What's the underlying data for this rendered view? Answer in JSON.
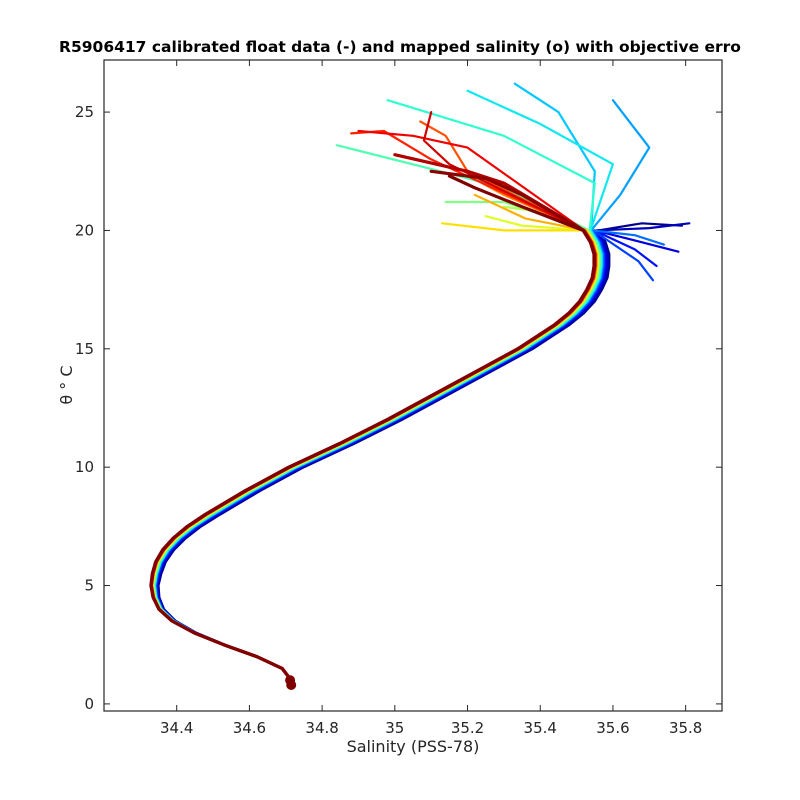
{
  "chart_data": {
    "type": "line",
    "title": "R5906417 calibrated float data (-) and mapped salinity (o) with objective erro",
    "xlabel": "Salinity (PSS-78)",
    "ylabel": "θ ° C",
    "xlim": [
      34.2,
      35.9
    ],
    "ylim": [
      -0.3,
      27.2
    ],
    "xticks": [
      34.4,
      34.6,
      34.8,
      35,
      35.2,
      35.4,
      35.6,
      35.8
    ],
    "xtick_labels": [
      "34.4",
      "34.6",
      "34.8",
      "35",
      "35.2",
      "35.4",
      "35.6",
      "35.8"
    ],
    "yticks": [
      0,
      5,
      10,
      15,
      20,
      25
    ],
    "ytick_labels": [
      "0",
      "5",
      "10",
      "15",
      "20",
      "25"
    ],
    "grid": false,
    "legend": "none",
    "colormap": "jet",
    "base_profile": {
      "theta": [
        1.0,
        1.5,
        2.0,
        2.5,
        3.0,
        3.5,
        4.0,
        4.5,
        5.0,
        5.5,
        6.0,
        6.5,
        7.0,
        7.5,
        8.0,
        9.0,
        10.0,
        11.0,
        12.0,
        13.0,
        14.0,
        15.0,
        16.0,
        16.5,
        17.0,
        17.5,
        18.0,
        18.5,
        19.0,
        19.5,
        20.0
      ],
      "salinity": [
        34.715,
        34.69,
        34.62,
        34.53,
        34.45,
        34.39,
        34.355,
        34.34,
        34.335,
        34.34,
        34.35,
        34.37,
        34.4,
        34.44,
        34.49,
        34.6,
        34.72,
        34.86,
        34.99,
        35.11,
        35.23,
        35.35,
        35.45,
        35.49,
        35.52,
        35.54,
        35.555,
        35.56,
        35.56,
        35.55,
        35.53
      ]
    },
    "series": [
      {
        "color": "#00008f",
        "s_offset": 0.03,
        "top": [
          [
            20.3,
            35.68
          ],
          [
            20.2,
            35.79
          ]
        ]
      },
      {
        "color": "#0000ba",
        "s_offset": 0.025,
        "top": [
          [
            20.1,
            35.7
          ],
          [
            20.3,
            35.81
          ]
        ]
      },
      {
        "color": "#0000e0",
        "s_offset": 0.02,
        "top": [
          [
            19.5,
            35.68
          ],
          [
            19.1,
            35.78
          ]
        ]
      },
      {
        "color": "#0010ff",
        "s_offset": 0.018,
        "top": [
          [
            19.2,
            35.66
          ],
          [
            18.5,
            35.72
          ]
        ]
      },
      {
        "color": "#0040ff",
        "s_offset": 0.015,
        "top": [
          [
            18.7,
            35.67
          ],
          [
            17.9,
            35.71
          ]
        ]
      },
      {
        "color": "#0070ff",
        "s_offset": 0.012,
        "top": [
          [
            19.8,
            35.66
          ],
          [
            19.4,
            35.74
          ]
        ]
      },
      {
        "color": "#00a0ff",
        "s_offset": 0.01,
        "top": [
          [
            21.5,
            35.62
          ],
          [
            23.5,
            35.7
          ],
          [
            25.5,
            35.6
          ]
        ]
      },
      {
        "color": "#00c8ff",
        "s_offset": 0.01,
        "top": [
          [
            22.5,
            35.55
          ],
          [
            25.0,
            35.45
          ],
          [
            26.2,
            35.33
          ]
        ]
      },
      {
        "color": "#10e8f0",
        "s_offset": 0.008,
        "top": [
          [
            22.8,
            35.6
          ],
          [
            24.5,
            35.4
          ],
          [
            25.9,
            35.2
          ]
        ]
      },
      {
        "color": "#30ffd0",
        "s_offset": 0.006,
        "top": [
          [
            22.0,
            35.55
          ],
          [
            24.0,
            35.3
          ],
          [
            25.5,
            34.98
          ]
        ]
      },
      {
        "color": "#50ffb0",
        "s_offset": 0.004,
        "top": [
          [
            21.8,
            35.3
          ],
          [
            22.6,
            35.1
          ],
          [
            23.6,
            34.84
          ]
        ]
      },
      {
        "color": "#80ff80",
        "s_offset": 0.002,
        "top": [
          [
            21.2,
            35.3
          ],
          [
            21.2,
            35.14
          ]
        ]
      },
      {
        "color": "#b0ff50",
        "s_offset": 0.0,
        "top": [
          [
            20.8,
            35.4
          ],
          [
            21.0,
            35.3
          ]
        ]
      },
      {
        "color": "#e0ff20",
        "s_offset": -0.002,
        "top": [
          [
            20.2,
            35.35
          ],
          [
            20.6,
            35.25
          ]
        ]
      },
      {
        "color": "#ffe000",
        "s_offset": -0.004,
        "top": [
          [
            20.0,
            35.3
          ],
          [
            20.3,
            35.13
          ]
        ]
      },
      {
        "color": "#ffb000",
        "s_offset": -0.005,
        "top": [
          [
            20.5,
            35.36
          ],
          [
            21.5,
            35.22
          ]
        ]
      },
      {
        "color": "#ff8000",
        "s_offset": -0.006,
        "top": [
          [
            21.5,
            35.3
          ],
          [
            22.0,
            35.24
          ]
        ]
      },
      {
        "color": "#ff5000",
        "s_offset": -0.007,
        "top": [
          [
            22.5,
            35.2
          ],
          [
            24.0,
            35.14
          ],
          [
            24.6,
            35.07
          ]
        ]
      },
      {
        "color": "#ff2000",
        "s_offset": -0.008,
        "top": [
          [
            23.0,
            35.1
          ],
          [
            24.2,
            34.97
          ],
          [
            24.1,
            34.88
          ]
        ]
      },
      {
        "color": "#f00000",
        "s_offset": -0.009,
        "top": [
          [
            23.5,
            35.2
          ],
          [
            24.0,
            35.05
          ],
          [
            24.2,
            34.9
          ]
        ]
      },
      {
        "color": "#d00000",
        "s_offset": -0.01,
        "top": [
          [
            22.8,
            35.15
          ],
          [
            23.8,
            35.08
          ],
          [
            25.0,
            35.1
          ]
        ]
      },
      {
        "color": "#b00000",
        "s_offset": -0.01,
        "top": [
          [
            22.0,
            35.3
          ],
          [
            22.5,
            35.2
          ],
          [
            23.2,
            35.0
          ]
        ]
      },
      {
        "color": "#8c0000",
        "s_offset": -0.011,
        "top": [
          [
            21.5,
            35.35
          ],
          [
            22.2,
            35.25
          ],
          [
            22.5,
            35.1
          ]
        ]
      },
      {
        "color": "#800000",
        "s_offset": -0.012,
        "top": [
          [
            21.0,
            35.35
          ],
          [
            21.8,
            35.22
          ],
          [
            22.3,
            35.15
          ]
        ]
      }
    ]
  }
}
